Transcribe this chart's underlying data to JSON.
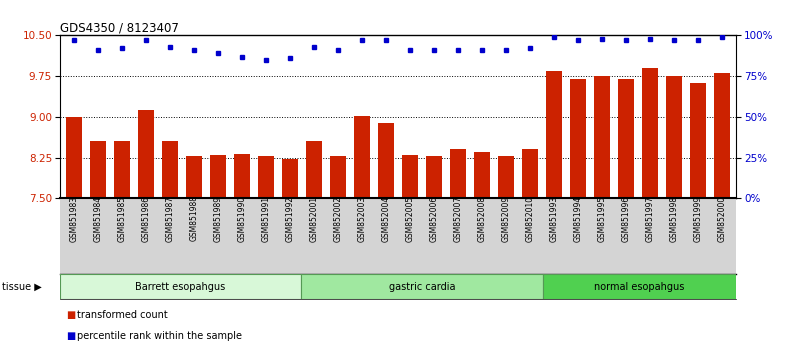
{
  "title": "GDS4350 / 8123407",
  "samples": [
    "GSM851983",
    "GSM851984",
    "GSM851985",
    "GSM851986",
    "GSM851987",
    "GSM851988",
    "GSM851989",
    "GSM851990",
    "GSM851991",
    "GSM851992",
    "GSM852001",
    "GSM852002",
    "GSM852003",
    "GSM852004",
    "GSM852005",
    "GSM852006",
    "GSM852007",
    "GSM852008",
    "GSM852009",
    "GSM852010",
    "GSM851993",
    "GSM851994",
    "GSM851995",
    "GSM851996",
    "GSM851997",
    "GSM851998",
    "GSM851999",
    "GSM852000"
  ],
  "bar_values": [
    9.0,
    8.55,
    8.55,
    9.12,
    8.55,
    8.28,
    8.3,
    8.32,
    8.28,
    8.22,
    8.55,
    8.28,
    9.02,
    8.88,
    8.3,
    8.28,
    8.4,
    8.35,
    8.28,
    8.4,
    9.85,
    9.7,
    9.75,
    9.7,
    9.9,
    9.75,
    9.62,
    9.8
  ],
  "percentile_values": [
    97,
    91,
    92,
    97,
    93,
    91,
    89,
    87,
    85,
    86,
    93,
    91,
    97,
    97,
    91,
    91,
    91,
    91,
    91,
    92,
    99,
    97,
    98,
    97,
    98,
    97,
    97,
    99
  ],
  "tissue_groups": [
    {
      "label": "Barrett esopahgus",
      "start": 0,
      "end": 10,
      "color": "#d8f8d8"
    },
    {
      "label": "gastric cardia",
      "start": 10,
      "end": 20,
      "color": "#a0e8a0"
    },
    {
      "label": "normal esopahgus",
      "start": 20,
      "end": 28,
      "color": "#50d050"
    }
  ],
  "ylim_left": [
    7.5,
    10.5
  ],
  "ylim_right": [
    0,
    100
  ],
  "yticks_left": [
    7.5,
    8.25,
    9.0,
    9.75,
    10.5
  ],
  "yticks_right": [
    0,
    25,
    50,
    75,
    100
  ],
  "bar_color": "#cc2200",
  "dot_color": "#0000cc",
  "grid_color": "#000000",
  "bg_color": "#ffffff",
  "plot_bg": "#ffffff",
  "tick_bg": "#d4d4d4",
  "tick_label_color_left": "#cc2200",
  "tick_label_color_right": "#0000cc"
}
